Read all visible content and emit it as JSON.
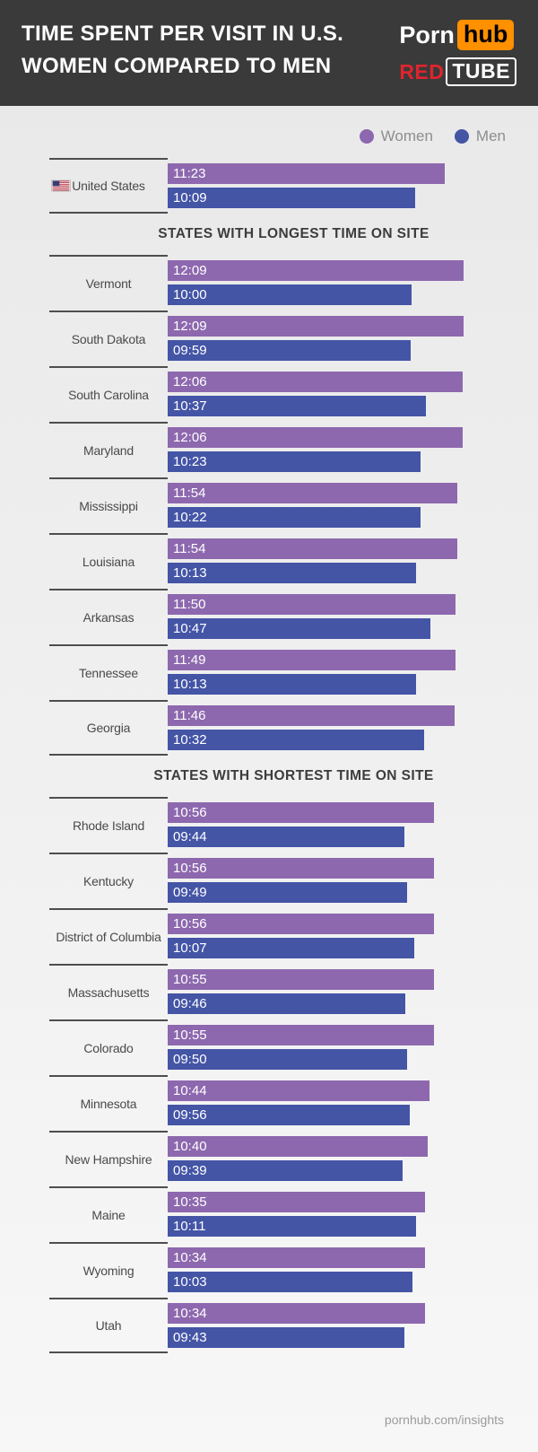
{
  "header": {
    "title_line1": "TIME SPENT PER VISIT IN U.S.",
    "title_line2": "WOMEN COMPARED TO MEN",
    "logos": {
      "pornhub_porn": "Porn",
      "pornhub_hub": "hub",
      "redtube_red": "RED",
      "redtube_tube": "TUBE"
    }
  },
  "legend": {
    "women_label": "Women",
    "men_label": "Men"
  },
  "colors": {
    "women": "#8d68ae",
    "men": "#4455a6",
    "header_bg": "#3a3a3a",
    "pornhub_orange": "#ff9000",
    "redtube_red": "#e0242e"
  },
  "footer": {
    "text": "pornhub.com/insights"
  },
  "chart_data": {
    "type": "bar",
    "orientation": "horizontal",
    "title": "Time Spent Per Visit in U.S. — Women Compared to Men",
    "series_names": [
      "Women",
      "Men"
    ],
    "value_format": "mm:ss",
    "max_value": "12:09",
    "value_labels_on_bars": true,
    "axes_shown": false,
    "sections": [
      {
        "header": "",
        "rows": [
          {
            "label": "United States",
            "flag": "us-flag-icon",
            "women": "11:23",
            "men": "10:09"
          }
        ]
      },
      {
        "header": "STATES WITH LONGEST TIME ON SITE",
        "rows": [
          {
            "label": "Vermont",
            "women": "12:09",
            "men": "10:00"
          },
          {
            "label": "South Dakota",
            "women": "12:09",
            "men": "09:59"
          },
          {
            "label": "South Carolina",
            "women": "12:06",
            "men": "10:37"
          },
          {
            "label": "Maryland",
            "women": "12:06",
            "men": "10:23"
          },
          {
            "label": "Mississippi",
            "women": "11:54",
            "men": "10:22"
          },
          {
            "label": "Louisiana",
            "women": "11:54",
            "men": "10:13"
          },
          {
            "label": "Arkansas",
            "women": "11:50",
            "men": "10:47"
          },
          {
            "label": "Tennessee",
            "women": "11:49",
            "men": "10:13"
          },
          {
            "label": "Georgia",
            "women": "11:46",
            "men": "10:32"
          }
        ]
      },
      {
        "header": "STATES WITH SHORTEST TIME ON SITE",
        "rows": [
          {
            "label": "Rhode Island",
            "women": "10:56",
            "men": "09:44"
          },
          {
            "label": "Kentucky",
            "women": "10:56",
            "men": "09:49"
          },
          {
            "label": "District of Columbia",
            "women": "10:56",
            "men": "10:07"
          },
          {
            "label": "Massachusetts",
            "women": "10:55",
            "men": "09:46"
          },
          {
            "label": "Colorado",
            "women": "10:55",
            "men": "09:50"
          },
          {
            "label": "Minnesota",
            "women": "10:44",
            "men": "09:56"
          },
          {
            "label": "New Hampshire",
            "women": "10:40",
            "men": "09:39"
          },
          {
            "label": "Maine",
            "women": "10:35",
            "men": "10:11"
          },
          {
            "label": "Wyoming",
            "women": "10:34",
            "men": "10:03"
          },
          {
            "label": "Utah",
            "women": "10:34",
            "men": "09:43"
          }
        ]
      }
    ]
  }
}
